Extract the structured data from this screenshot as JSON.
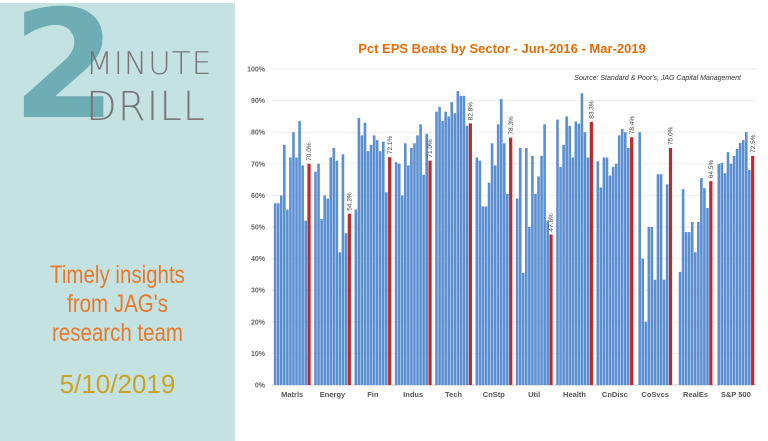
{
  "brand": {
    "number": "2",
    "word1": "MINUTE",
    "word2": "DRILL"
  },
  "tagline": [
    "Timely insights",
    "from JAG's",
    "research team"
  ],
  "date": "5/10/2019",
  "colors": {
    "panel": "#c4e2e2",
    "logo_number": "#6fadb5",
    "tagline": "#e8792c",
    "date": "#c9a227",
    "bar_blue": "#5b8fd1",
    "bar_red": "#c0282a",
    "title": "#e36c0a"
  },
  "chart_data": {
    "type": "bar",
    "title": "Pct EPS Beats by Sector - Jun-2016 - Mar-2019",
    "source": "Source: Standard & Poor's, JAG Capital Management",
    "ylim": [
      0,
      100
    ],
    "yticks": [
      "0%",
      "10%",
      "20%",
      "30%",
      "40%",
      "50%",
      "60%",
      "70%",
      "80%",
      "90%",
      "100%"
    ],
    "grid": true,
    "categories": [
      "Matrls",
      "Energy",
      "Fin",
      "Indus",
      "Tech",
      "CnStp",
      "Util",
      "Health",
      "CnDisc",
      "CoSvcs",
      "RealEs",
      "S&P 500"
    ],
    "groups": [
      {
        "name": "Matrls",
        "quarters": [
          57.5,
          57.5,
          60,
          76,
          55.5,
          72,
          80,
          72,
          83.5,
          69.5,
          52
        ],
        "average": 70.0,
        "label": "70.0%"
      },
      {
        "name": "Energy",
        "quarters": [
          67.5,
          70,
          52.5,
          60,
          59,
          72,
          75,
          71,
          42,
          73,
          48
        ],
        "average": 54.2,
        "label": "54.2%"
      },
      {
        "name": "Fin",
        "quarters": [
          55.5,
          84.5,
          79,
          83,
          74,
          76,
          79,
          77.5,
          74,
          77,
          61
        ],
        "average": 72.1,
        "label": "72.1%"
      },
      {
        "name": "Indus",
        "quarters": [
          70.5,
          70,
          60,
          76.5,
          69.5,
          75,
          76.5,
          79,
          82.5,
          66.5,
          79.5
        ],
        "average": 71.0,
        "label": "71.0%"
      },
      {
        "name": "Tech",
        "quarters": [
          86.5,
          88,
          83.5,
          86.5,
          85,
          89.5,
          86,
          93,
          91.5,
          91.5,
          82
        ],
        "average": 82.8,
        "label": "82.8%"
      },
      {
        "name": "CnStp",
        "quarters": [
          72,
          71,
          56.5,
          56.5,
          64,
          76.5,
          69.5,
          82.5,
          90.5,
          76.5,
          60.5
        ],
        "average": 78.3,
        "label": "78.3%"
      },
      {
        "name": "Util",
        "quarters": [
          59,
          75,
          35.5,
          75,
          50,
          72.5,
          60.5,
          66,
          72.5,
          82.5,
          52
        ],
        "average": 47.6,
        "label": "47.6%"
      },
      {
        "name": "Health",
        "quarters": [
          84,
          69,
          76,
          85,
          82,
          72,
          83.4,
          82.7,
          92.3,
          80,
          72
        ],
        "average": 83.3,
        "label": "83.3%"
      },
      {
        "name": "CnDisc",
        "quarters": [
          70.8,
          62.5,
          72,
          72,
          66.3,
          69,
          70,
          79,
          81,
          80,
          75
        ],
        "average": 78.4,
        "label": "78.4%"
      },
      {
        "name": "CoSvcs",
        "quarters": [
          80,
          40,
          20,
          50,
          50,
          33.3,
          66.7,
          66.7,
          33.3,
          63.5
        ],
        "average": 75.0,
        "label": "75.0%"
      },
      {
        "name": "RealEs",
        "quarters": [
          35.8,
          62,
          48.4,
          48.4,
          51.6,
          42,
          51.6,
          65.5,
          62.3,
          56
        ],
        "average": 64.5,
        "label": "64.5%"
      },
      {
        "name": "S&P 500",
        "quarters": [
          70,
          70.3,
          67,
          73.7,
          70,
          72.5,
          74.7,
          76.6,
          77.5,
          80,
          68
        ],
        "average": 72.5,
        "label": "72.5%"
      }
    ]
  }
}
